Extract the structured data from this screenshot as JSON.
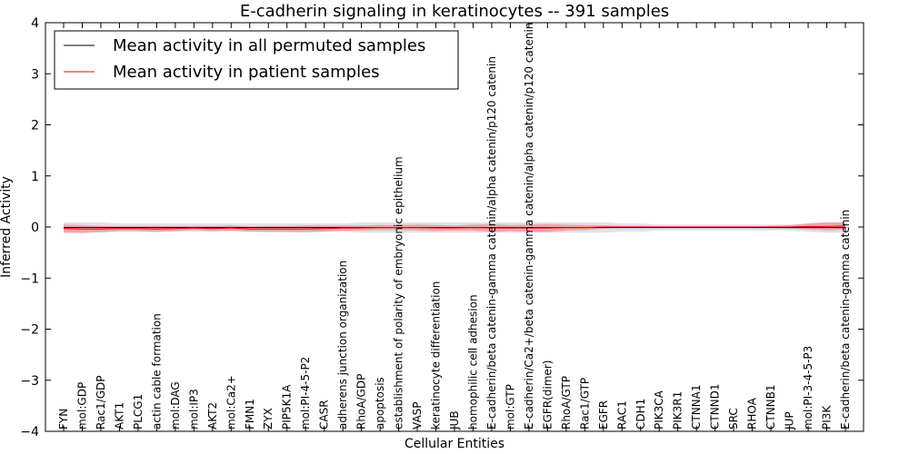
{
  "chart_data": {
    "type": "line",
    "title": "E-cadherin signaling in keratinocytes -- 391 samples",
    "xlabel": "Cellular Entities",
    "ylabel": "Inferred Activity",
    "ylim": [
      -4,
      4
    ],
    "yticks": [
      -4,
      -3,
      -2,
      -1,
      0,
      1,
      2,
      3,
      4
    ],
    "ytick_labels": [
      "−4",
      "−3",
      "−2",
      "−1",
      "0",
      "1",
      "2",
      "3",
      "4"
    ],
    "grid": false,
    "legend_position": "top-left",
    "categories": [
      "FYN",
      "mol:GDP",
      "Rac1/GDP",
      "AKT1",
      "PLCG1",
      "actin cable formation",
      "mol:DAG",
      "mol:IP3",
      "AKT2",
      "mol:Ca2+",
      "FMN1",
      "ZYX",
      "PIP5K1A",
      "mol:PI-4-5-P2",
      "CASR",
      "adherens junction organization",
      "RhoA/GDP",
      "apoptosis",
      "establishment of polarity of embryonic epithelium",
      "VASP",
      "keratinocyte differentiation",
      "JUB",
      "homophilic cell adhesion",
      "E-cadherin/beta catenin-gamma catenin/alpha catenin/p120 catenin",
      "mol:GTP",
      "E-cadherin/Ca2+/beta catenin-gamma catenin/alpha catenin/p120 catenin",
      "EGFR(dimer)",
      "RhoA/GTP",
      "Rac1/GTP",
      "EGFR",
      "RAC1",
      "CDH1",
      "PIK3CA",
      "PIK3R1",
      "CTNNA1",
      "CTNND1",
      "SRC",
      "RHOA",
      "CTNNB1",
      "JUP",
      "mol:PI-3-4-5-P3",
      "PI3K",
      "E-cadherin/beta catenin-gamma catenin"
    ],
    "series": [
      {
        "name": "Mean activity in all permuted samples",
        "color": "#000000",
        "band_color": "#c8c8dc",
        "values": [
          -0.01,
          -0.01,
          -0.01,
          -0.01,
          -0.01,
          -0.01,
          -0.01,
          -0.01,
          -0.01,
          -0.01,
          -0.01,
          -0.01,
          -0.01,
          -0.01,
          -0.01,
          -0.01,
          -0.01,
          -0.01,
          -0.01,
          -0.01,
          -0.01,
          -0.01,
          -0.01,
          -0.01,
          -0.01,
          -0.01,
          -0.01,
          -0.01,
          -0.01,
          -0.01,
          -0.01,
          -0.01,
          -0.01,
          -0.01,
          -0.01,
          -0.01,
          -0.01,
          -0.01,
          -0.01,
          -0.01,
          -0.01,
          -0.01,
          -0.01
        ],
        "band": [
          0.1,
          0.1,
          0.1,
          0.08,
          0.08,
          0.08,
          0.08,
          0.08,
          0.08,
          0.08,
          0.08,
          0.08,
          0.08,
          0.08,
          0.08,
          0.08,
          0.1,
          0.1,
          0.1,
          0.1,
          0.1,
          0.1,
          0.1,
          0.1,
          0.1,
          0.1,
          0.1,
          0.1,
          0.1,
          0.1,
          0.08,
          0.08,
          0.06,
          0.06,
          0.06,
          0.06,
          0.06,
          0.06,
          0.06,
          0.06,
          0.08,
          0.1,
          0.1
        ]
      },
      {
        "name": "Mean activity in patient samples",
        "color": "#ff0000",
        "band_color": "#ff3c3c",
        "values": [
          -0.03,
          -0.04,
          -0.04,
          -0.03,
          -0.03,
          -0.04,
          -0.03,
          -0.02,
          -0.03,
          -0.02,
          -0.04,
          -0.04,
          -0.04,
          -0.04,
          -0.03,
          -0.02,
          -0.02,
          -0.01,
          -0.01,
          -0.01,
          -0.02,
          -0.02,
          -0.01,
          -0.02,
          -0.02,
          -0.02,
          -0.02,
          -0.01,
          -0.01,
          0.0,
          0.0,
          0.0,
          0.0,
          0.0,
          0.0,
          0.0,
          0.0,
          0.0,
          0.0,
          0.0,
          0.01,
          0.01,
          0.02
        ],
        "band": [
          0.08,
          0.08,
          0.06,
          0.05,
          0.05,
          0.06,
          0.05,
          0.04,
          0.05,
          0.05,
          0.05,
          0.06,
          0.06,
          0.07,
          0.06,
          0.05,
          0.05,
          0.05,
          0.05,
          0.06,
          0.06,
          0.05,
          0.06,
          0.08,
          0.06,
          0.07,
          0.08,
          0.06,
          0.05,
          0.03,
          0.02,
          0.02,
          0.01,
          0.01,
          0.01,
          0.01,
          0.01,
          0.01,
          0.02,
          0.03,
          0.06,
          0.08,
          0.07
        ]
      }
    ]
  }
}
